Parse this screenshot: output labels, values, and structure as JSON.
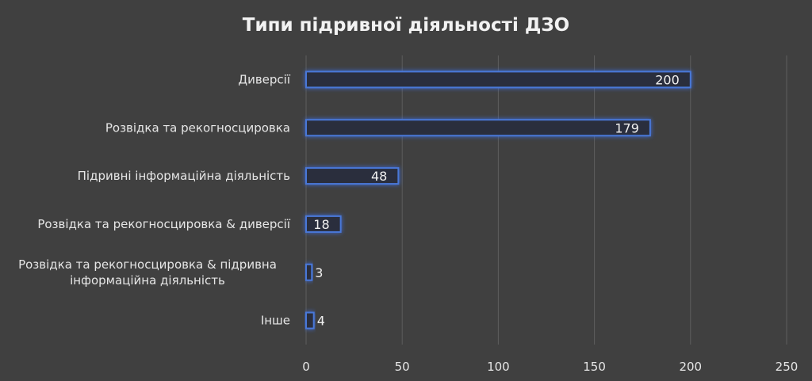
{
  "chart_data": {
    "type": "bar",
    "orientation": "horizontal",
    "title": "Типи підривної діяльності ДЗО",
    "categories": [
      "Диверсії",
      "Розвідка та рекогносцировка",
      "Підривні інформаційна діяльність",
      "Розвідка та рекогносцировка & диверсії",
      [
        "Розвідка та рекогносцировка & підривна",
        "інформаційна діяльність"
      ],
      "Інше"
    ],
    "values": [
      200,
      179,
      48,
      18,
      3,
      4
    ],
    "xlim": [
      0,
      250
    ],
    "xticks": [
      "0",
      "50",
      "100",
      "150",
      "200",
      "250"
    ],
    "xlabel": "",
    "ylabel": "",
    "grid": true,
    "legend": "none",
    "colors": {
      "background": "#404040",
      "bar_fill": "#2a2f3d",
      "bar_outline": "#4a78d8",
      "glow": "#3c6ee6",
      "grid": "#5e5e5e",
      "text": "#e6e6e6"
    }
  }
}
